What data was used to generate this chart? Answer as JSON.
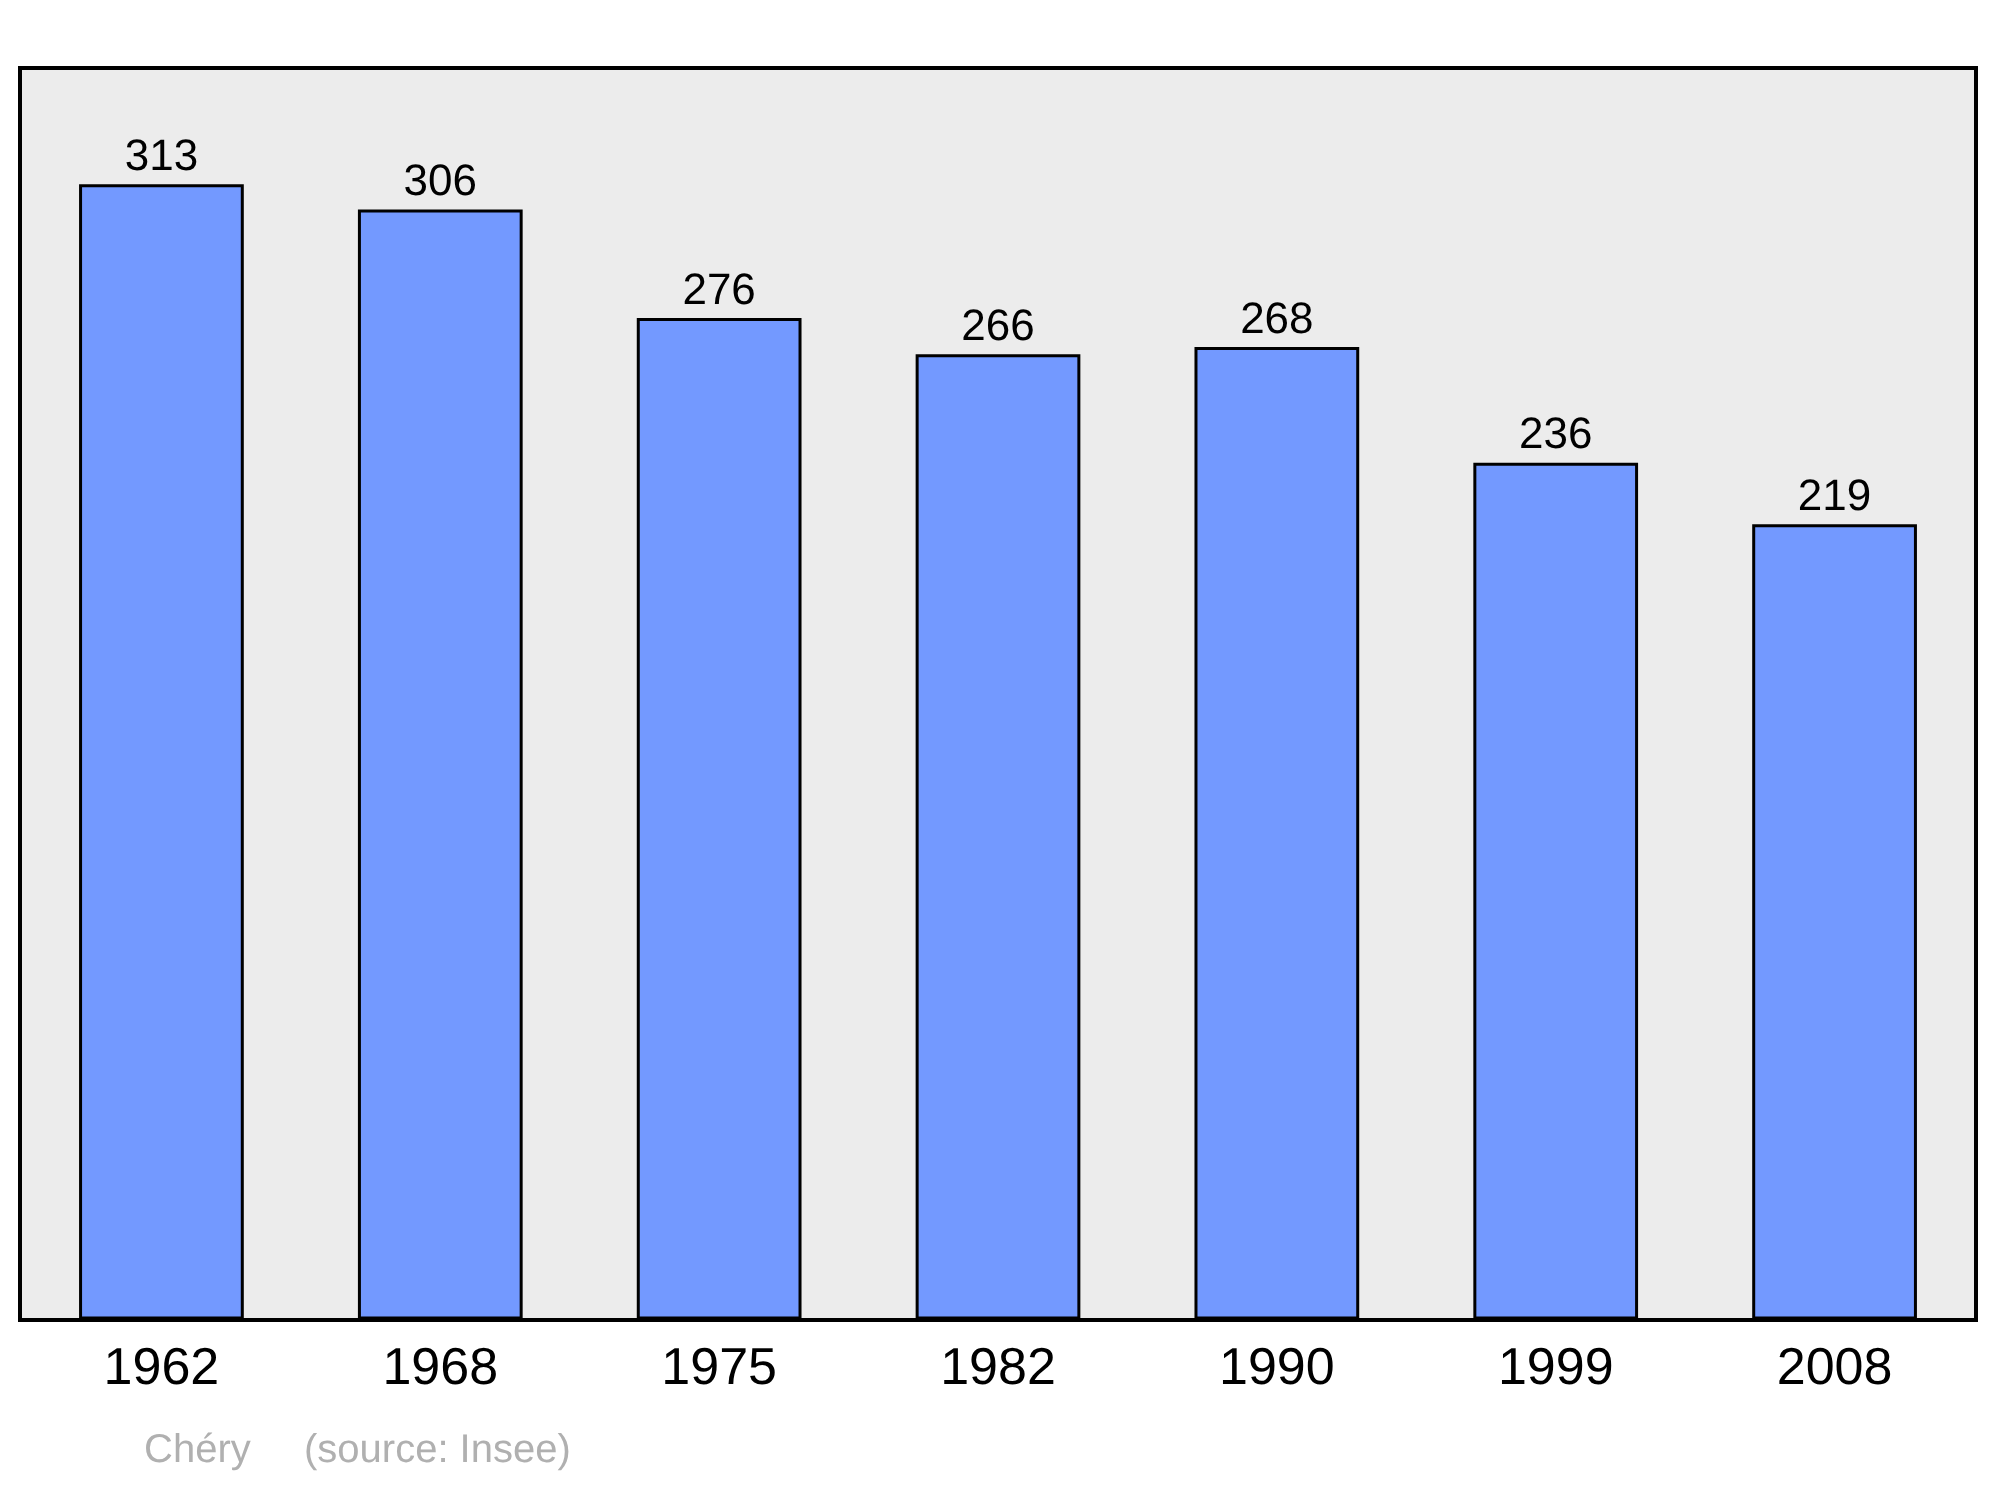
{
  "chart_data": {
    "type": "bar",
    "categories": [
      "1962",
      "1968",
      "1975",
      "1982",
      "1990",
      "1999",
      "2008"
    ],
    "values": [
      313,
      306,
      276,
      266,
      268,
      236,
      219
    ],
    "color": "#7399ff",
    "ylim": [
      0,
      345
    ],
    "data_labels": true,
    "tick_labels": "x",
    "grid": false,
    "legend": false,
    "annotations": [
      "Chéry",
      "(source: Insee)"
    ]
  }
}
